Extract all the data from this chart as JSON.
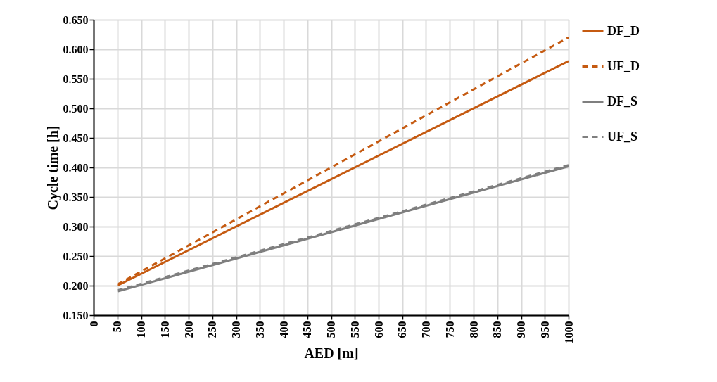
{
  "chart_data": {
    "type": "line",
    "xlabel": "AED [m]",
    "ylabel": "Cycle time [h]",
    "x": [
      50,
      1000
    ],
    "series": [
      {
        "name": "DF_D",
        "color": "#c55a11",
        "line_style": "solid",
        "values": [
          0.2,
          0.58
        ]
      },
      {
        "name": "UF_D",
        "color": "#c55a11",
        "line_style": "dashed",
        "values": [
          0.202,
          0.62
        ]
      },
      {
        "name": "DF_S",
        "color": "#7f7f7f",
        "line_style": "solid",
        "values": [
          0.19,
          0.402
        ]
      },
      {
        "name": "UF_S",
        "color": "#7f7f7f",
        "line_style": "dashed",
        "values": [
          0.192,
          0.404
        ]
      }
    ],
    "xlim": [
      0,
      1000
    ],
    "xticks": [
      0,
      50,
      100,
      150,
      200,
      250,
      300,
      350,
      400,
      450,
      500,
      550,
      600,
      650,
      700,
      750,
      800,
      850,
      900,
      950,
      1000
    ],
    "ylim": [
      0.15,
      0.65
    ],
    "yticks": [
      {
        "value": 0.15,
        "label": "0.150"
      },
      {
        "value": 0.2,
        "label": "0.200"
      },
      {
        "value": 0.25,
        "label": "0.250"
      },
      {
        "value": 0.3,
        "label": "0.300"
      },
      {
        "value": 0.35,
        "label": "0.350"
      },
      {
        "value": 0.4,
        "label": "0.400"
      },
      {
        "value": 0.45,
        "label": "0.450"
      },
      {
        "value": 0.5,
        "label": "0.500"
      },
      {
        "value": 0.55,
        "label": "0.550"
      },
      {
        "value": 0.6,
        "label": "0.600"
      },
      {
        "value": 0.65,
        "label": "0.650"
      }
    ],
    "grid": true,
    "legend": "right",
    "marker": "none"
  }
}
